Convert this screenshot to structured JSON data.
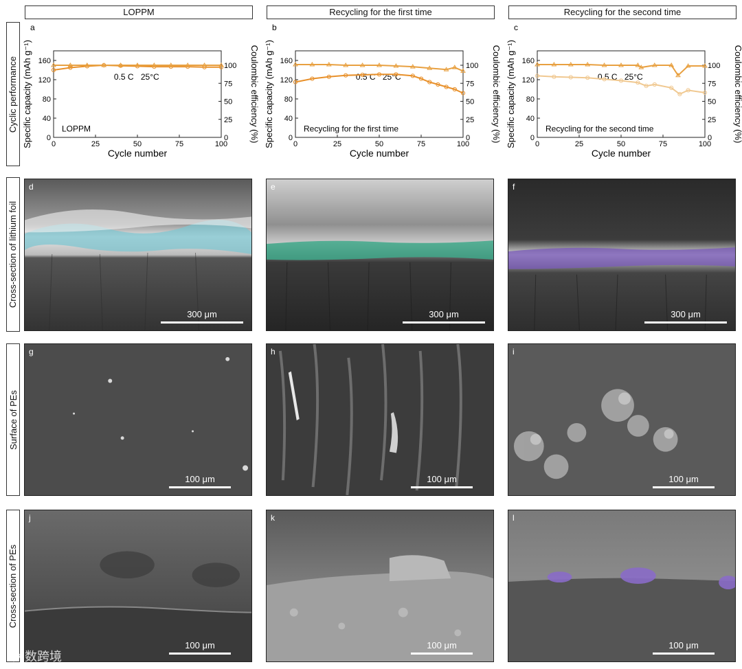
{
  "column_headers": [
    "LOPPM",
    "Recycling for the first time",
    "Recycling for the second time"
  ],
  "row_labels": [
    "Cyclic performance",
    "Cross-section of lithium foil",
    "Surface of PEs",
    "Cross-section of PEs"
  ],
  "colors": {
    "capacity": "#e8902a",
    "efficiency": "#e8a040",
    "capacity_faded": "#f0c890",
    "layer_d": "#7fc6d0",
    "layer_e": "#3fa88a",
    "layer_f": "#7a5cb8",
    "particles_l": "#8a6cc8"
  },
  "chart_data": [
    {
      "type": "scatter",
      "panel": "a",
      "xlabel": "Cycle number",
      "ylabel": "Specific capacity (mAh g⁻¹)",
      "y2label": "Coulombic efficiency (%)",
      "xlim": [
        0,
        100
      ],
      "ylim": [
        0,
        180
      ],
      "y2lim": [
        0,
        120
      ],
      "xticks": [
        "0",
        "25",
        "50",
        "75",
        "100"
      ],
      "yticks": [
        "0",
        "40",
        "80",
        "120",
        "160"
      ],
      "y2ticks": [
        "0",
        "25",
        "50",
        "75",
        "100"
      ],
      "annotation_rate": "0.5 C",
      "annotation_temp": "25°C",
      "inner_label": "LOPPM",
      "series": [
        {
          "axis": "left",
          "x": [
            0,
            10,
            20,
            30,
            40,
            50,
            60,
            70,
            80,
            90,
            100
          ],
          "values": [
            140,
            145,
            148,
            150,
            149,
            148,
            147,
            147,
            147,
            146,
            146
          ]
        },
        {
          "axis": "right",
          "x": [
            0,
            10,
            20,
            30,
            40,
            50,
            60,
            70,
            80,
            90,
            100
          ],
          "values": [
            100,
            100,
            100,
            100,
            100,
            100,
            100,
            100,
            100,
            100,
            100
          ]
        }
      ]
    },
    {
      "type": "scatter",
      "panel": "b",
      "xlabel": "Cycle number",
      "ylabel": "Specific capacity (mAh g⁻¹)",
      "y2label": "Coulombic efficiency (%)",
      "xlim": [
        0,
        100
      ],
      "ylim": [
        0,
        180
      ],
      "y2lim": [
        0,
        120
      ],
      "xticks": [
        "0",
        "25",
        "50",
        "75",
        "100"
      ],
      "yticks": [
        "0",
        "40",
        "80",
        "120",
        "160"
      ],
      "y2ticks": [
        "0",
        "25",
        "50",
        "75",
        "100"
      ],
      "annotation_rate": "0.5 C",
      "annotation_temp": "25°C",
      "inner_label": "Recycling for the first time",
      "series": [
        {
          "axis": "left",
          "x": [
            0,
            10,
            20,
            30,
            40,
            50,
            60,
            70,
            75,
            80,
            85,
            90,
            95,
            100
          ],
          "values": [
            115,
            122,
            126,
            129,
            130,
            131,
            131,
            128,
            122,
            115,
            110,
            105,
            100,
            92
          ]
        },
        {
          "axis": "right",
          "x": [
            0,
            10,
            20,
            30,
            40,
            50,
            60,
            70,
            80,
            90,
            95,
            100
          ],
          "values": [
            101,
            101,
            101,
            100,
            100,
            100,
            99,
            98,
            96,
            94,
            97,
            92
          ]
        }
      ]
    },
    {
      "type": "scatter",
      "panel": "c",
      "xlabel": "Cycle number",
      "ylabel": "Specific capacity (mAh g⁻¹)",
      "y2label": "Coulombic efficiency (%)",
      "xlim": [
        0,
        100
      ],
      "ylim": [
        0,
        180
      ],
      "y2lim": [
        0,
        120
      ],
      "xticks": [
        "0",
        "25",
        "50",
        "75",
        "100"
      ],
      "yticks": [
        "0",
        "40",
        "80",
        "120",
        "160"
      ],
      "y2ticks": [
        "0",
        "25",
        "50",
        "75",
        "100"
      ],
      "annotation_rate": "0.5 C",
      "annotation_temp": "25°C",
      "inner_label": "Recycling for the second time",
      "series": [
        {
          "axis": "left",
          "x": [
            0,
            10,
            20,
            30,
            40,
            50,
            60,
            65,
            70,
            80,
            85,
            90,
            100
          ],
          "values": [
            128,
            126,
            125,
            124,
            121,
            118,
            114,
            107,
            110,
            103,
            90,
            98,
            93
          ]
        },
        {
          "axis": "right",
          "x": [
            0,
            10,
            20,
            30,
            40,
            50,
            60,
            62,
            70,
            80,
            84,
            90,
            100
          ],
          "values": [
            101,
            101,
            101,
            101,
            100,
            100,
            100,
            97,
            100,
            100,
            86,
            99,
            99
          ]
        }
      ]
    }
  ],
  "micrographs": [
    {
      "letter": "d",
      "scale": "300 μm"
    },
    {
      "letter": "e",
      "scale": "300 μm"
    },
    {
      "letter": "f",
      "scale": "300 μm"
    },
    {
      "letter": "g",
      "scale": "100 μm"
    },
    {
      "letter": "h",
      "scale": "100 μm"
    },
    {
      "letter": "i",
      "scale": "100 μm"
    },
    {
      "letter": "j",
      "scale": "100 μm"
    },
    {
      "letter": "k",
      "scale": "100 μm"
    },
    {
      "letter": "l",
      "scale": "100 μm"
    }
  ],
  "watermark": "大数跨境"
}
